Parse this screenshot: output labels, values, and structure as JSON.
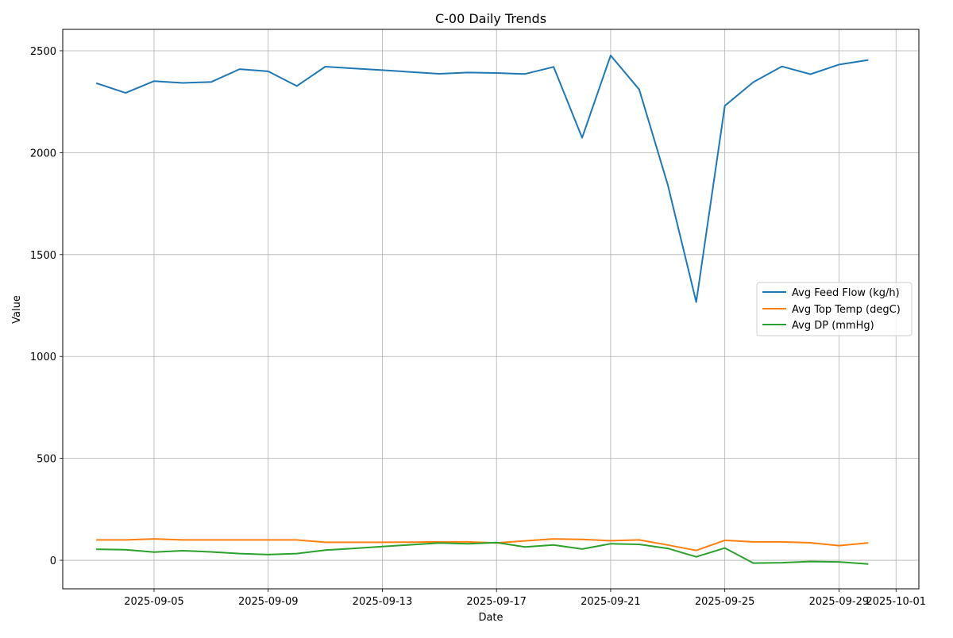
{
  "chart_data": {
    "type": "line",
    "title": "C-00 Daily Trends",
    "xlabel": "Date",
    "ylabel": "Value",
    "xlim": [
      "2025-09-01T19:12",
      "2025-10-01T19:12"
    ],
    "ylim": [
      -140,
      2605
    ],
    "grid": true,
    "legend_position": "center-right",
    "x_ticks": [
      "2025-09-05",
      "2025-09-09",
      "2025-09-13",
      "2025-09-17",
      "2025-09-21",
      "2025-09-25",
      "2025-09-29",
      "2025-10-01"
    ],
    "y_ticks": [
      0,
      500,
      1000,
      1500,
      2000,
      2500
    ],
    "x": [
      "2025-09-03",
      "2025-09-04",
      "2025-09-05",
      "2025-09-06",
      "2025-09-07",
      "2025-09-08",
      "2025-09-09",
      "2025-09-10",
      "2025-09-11",
      "2025-09-12",
      "2025-09-13",
      "2025-09-14",
      "2025-09-15",
      "2025-09-16",
      "2025-09-17",
      "2025-09-18",
      "2025-09-19",
      "2025-09-20",
      "2025-09-21",
      "2025-09-22",
      "2025-09-23",
      "2025-09-24",
      "2025-09-25",
      "2025-09-26",
      "2025-09-27",
      "2025-09-28",
      "2025-09-29",
      "2025-09-30"
    ],
    "series": [
      {
        "name": "Avg Feed Flow (kg/h)",
        "color": "#1f77b4",
        "values": [
          2340,
          2293,
          2351,
          2342,
          2347,
          2410,
          2399,
          2327,
          2422,
          2413,
          2405,
          2396,
          2387,
          2393,
          2391,
          2386,
          2421,
          2073,
          2477,
          2310,
          1843,
          1267,
          2230,
          2346,
          2423,
          2385,
          2432,
          2454
        ]
      },
      {
        "name": "Avg Top Temp (degC)",
        "color": "#ff7f0e",
        "values": [
          100,
          100,
          105,
          100,
          100,
          100,
          100,
          100,
          88,
          88,
          88,
          89,
          90,
          90,
          85,
          95,
          105,
          102,
          96,
          100,
          75,
          48,
          98,
          90,
          90,
          86,
          72,
          85
        ]
      },
      {
        "name": "Avg DP (mmHg)",
        "color": "#2ca02c",
        "values": [
          54,
          52,
          40,
          47,
          41,
          33,
          28,
          33,
          50,
          58,
          67,
          76,
          85,
          81,
          87,
          65,
          75,
          55,
          81,
          78,
          58,
          17,
          60,
          -14,
          -12,
          -6,
          -8,
          -18
        ]
      }
    ]
  }
}
